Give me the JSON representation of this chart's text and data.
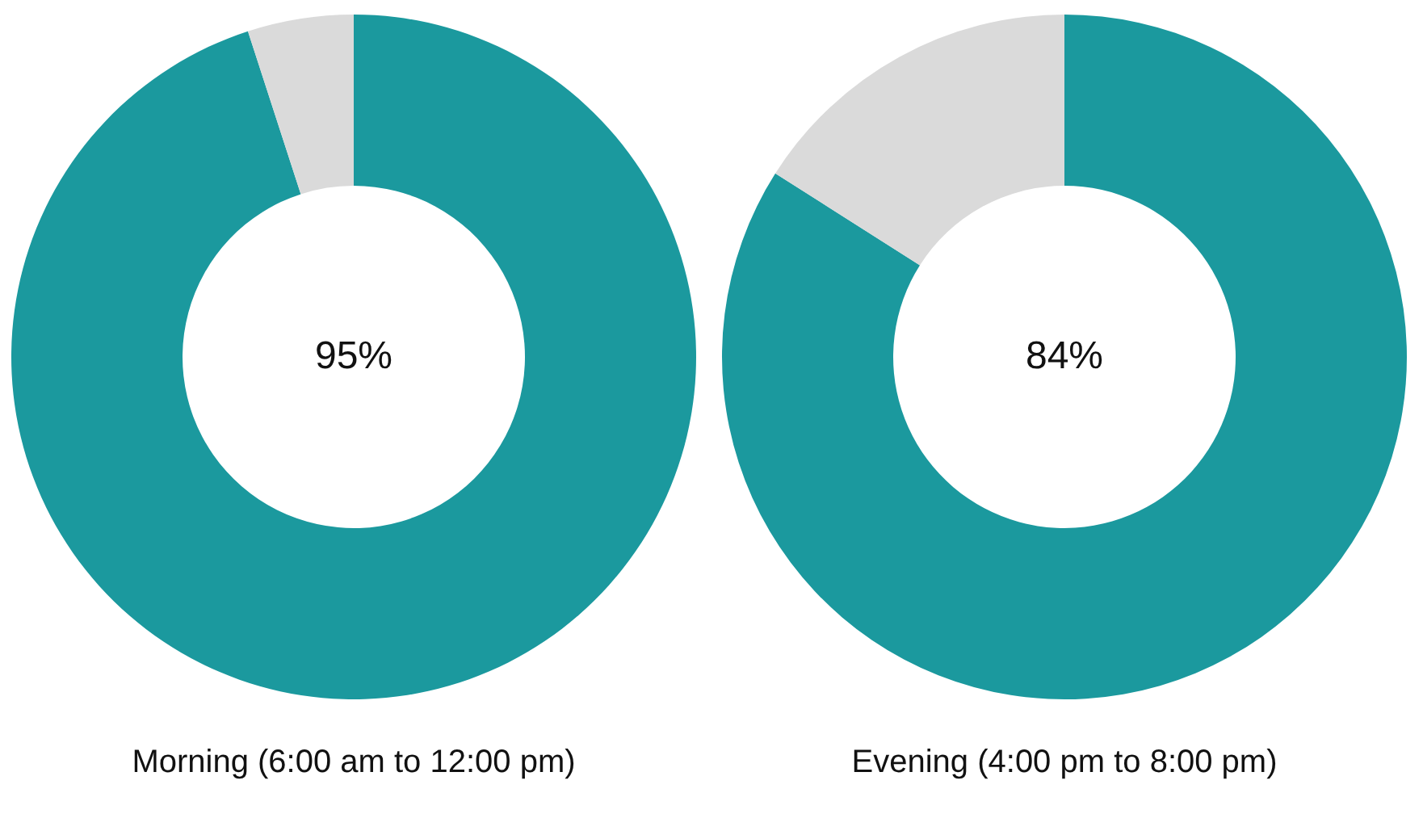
{
  "chart_data": [
    {
      "type": "donut",
      "title": "Morning (6:00 am to 12:00 pm)",
      "categories": [
        null,
        null
      ],
      "values": [
        95,
        5
      ],
      "colors": [
        "#1b999e",
        "#dadada"
      ],
      "value_labels": [
        "95%",
        null
      ]
    },
    {
      "type": "donut",
      "title": "Evening (4:00 pm to 8:00 pm)",
      "categories": [
        null,
        null
      ],
      "values": [
        84,
        16
      ],
      "colors": [
        "#1b999e",
        "#dadada"
      ],
      "value_labels": [
        "84%",
        null
      ]
    }
  ]
}
